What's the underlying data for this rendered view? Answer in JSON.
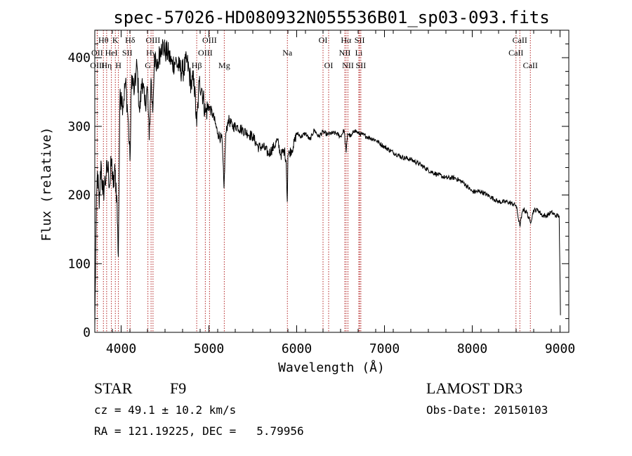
{
  "chart_data": {
    "type": "line",
    "title": "spec-57026-HD080932N055536B01_sp03-093.fits",
    "xlabel": "Wavelength (Å)",
    "ylabel": "Flux (relative)",
    "xlim": [
      3700,
      9100
    ],
    "ylim": [
      0,
      440
    ],
    "xticks": [
      4000,
      5000,
      6000,
      7000,
      8000,
      9000
    ],
    "yticks": [
      0,
      100,
      200,
      300,
      400
    ],
    "grid": false,
    "series": [
      {
        "name": "flux",
        "x": [
          3700,
          3715,
          3730,
          3750,
          3770,
          3790,
          3810,
          3830,
          3850,
          3870,
          3890,
          3910,
          3930,
          3950,
          3968,
          3985,
          4000,
          4020,
          4050,
          4080,
          4101,
          4120,
          4150,
          4180,
          4210,
          4240,
          4270,
          4300,
          4320,
          4340,
          4360,
          4380,
          4400,
          4430,
          4460,
          4500,
          4540,
          4580,
          4620,
          4660,
          4700,
          4750,
          4800,
          4830,
          4861,
          4890,
          4920,
          4960,
          5000,
          5050,
          5100,
          5150,
          5172,
          5190,
          5220,
          5270,
          5320,
          5380,
          5440,
          5500,
          5560,
          5620,
          5680,
          5740,
          5780,
          5820,
          5860,
          5880,
          5893,
          5900,
          5920,
          5960,
          6000,
          6050,
          6100,
          6150,
          6200,
          6250,
          6300,
          6350,
          6400,
          6450,
          6500,
          6540,
          6563,
          6580,
          6620,
          6660,
          6700,
          6750,
          6800,
          6900,
          7000,
          7100,
          7200,
          7300,
          7400,
          7500,
          7600,
          7700,
          7800,
          7900,
          8000,
          8100,
          8200,
          8300,
          8400,
          8500,
          8542,
          8580,
          8620,
          8662,
          8700,
          8750,
          8800,
          8850,
          8900,
          8950,
          8990,
          9005
        ],
        "values": [
          8,
          160,
          235,
          180,
          250,
          200,
          215,
          230,
          240,
          215,
          250,
          210,
          235,
          200,
          110,
          330,
          350,
          330,
          365,
          310,
          250,
          375,
          350,
          390,
          320,
          370,
          330,
          355,
          280,
          370,
          320,
          405,
          380,
          400,
          420,
          410,
          405,
          390,
          395,
          385,
          380,
          395,
          360,
          370,
          300,
          365,
          355,
          320,
          330,
          315,
          290,
          280,
          210,
          285,
          310,
          300,
          300,
          295,
          290,
          285,
          270,
          270,
          260,
          270,
          280,
          258,
          265,
          250,
          190,
          258,
          262,
          270,
          290,
          285,
          290,
          280,
          295,
          285,
          292,
          288,
          290,
          290,
          285,
          295,
          262,
          290,
          285,
          295,
          290,
          288,
          285,
          280,
          270,
          262,
          255,
          252,
          245,
          236,
          230,
          225,
          225,
          218,
          205,
          205,
          198,
          190,
          190,
          185,
          155,
          180,
          175,
          160,
          178,
          178,
          170,
          170,
          175,
          170,
          170,
          25
        ]
      }
    ],
    "lines": [
      {
        "name": "Hθ",
        "x": 3798,
        "row": 0
      },
      {
        "name": "OII",
        "x": 3727,
        "row": 1
      },
      {
        "name": "OIII",
        "x": 3729,
        "row": 2
      },
      {
        "name": "Hη",
        "x": 3835,
        "row": 2
      },
      {
        "name": "HeI",
        "x": 3889,
        "row": 1
      },
      {
        "name": "K",
        "x": 3934,
        "row": 0
      },
      {
        "name": "SII",
        "x": 4070,
        "row": 1
      },
      {
        "name": "H",
        "x": 3969,
        "row": 2
      },
      {
        "name": "Hδ",
        "x": 4102,
        "row": 0
      },
      {
        "name": "OIII",
        "x": 4363,
        "row": 0
      },
      {
        "name": "Hγ",
        "x": 4341,
        "row": 1
      },
      {
        "name": "G",
        "x": 4305,
        "row": 2
      },
      {
        "name": "Hβ",
        "x": 4861,
        "row": 2
      },
      {
        "name": "OIII",
        "x": 5007,
        "row": 0
      },
      {
        "name": "OIII",
        "x": 4959,
        "row": 1
      },
      {
        "name": "Mg",
        "x": 5175,
        "row": 2
      },
      {
        "name": "Na",
        "x": 5894,
        "row": 1
      },
      {
        "name": "OI",
        "x": 6300,
        "row": 0
      },
      {
        "name": "OI",
        "x": 6364,
        "row": 2
      },
      {
        "name": "Hα",
        "x": 6563,
        "row": 0
      },
      {
        "name": "NII",
        "x": 6548,
        "row": 1
      },
      {
        "name": "NII",
        "x": 6584,
        "row": 2
      },
      {
        "name": "SII",
        "x": 6717,
        "row": 0
      },
      {
        "name": "Li",
        "x": 6708,
        "row": 1
      },
      {
        "name": "SII",
        "x": 6731,
        "row": 2
      },
      {
        "name": "CaII",
        "x": 8542,
        "row": 0
      },
      {
        "name": "CaII",
        "x": 8498,
        "row": 1
      },
      {
        "name": "CaII",
        "x": 8662,
        "row": 2
      }
    ]
  },
  "info": {
    "class_label": "STAR",
    "subclass": "F9",
    "survey": "LAMOST DR3",
    "cz": "cz = 49.1 ± 10.2 km/s",
    "obs_date": "Obs-Date: 20150103",
    "coords": "RA = 121.19225, DEC =   5.79956"
  },
  "colors": {
    "spectrum": "#000000",
    "line_markers": "#b22222",
    "text": "#000000"
  }
}
